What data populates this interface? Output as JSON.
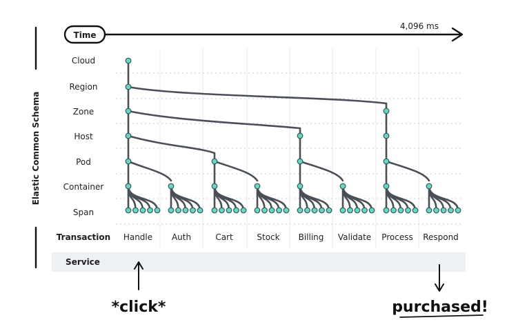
{
  "time_label": "Time",
  "time_value": "4,096 ms",
  "schema_label": "Elastic Common Schema",
  "levels": [
    "Cloud",
    "Region",
    "Zone",
    "Host",
    "Pod",
    "Container",
    "Span"
  ],
  "transaction_header": "Transaction",
  "transactions": [
    "Handle",
    "Auth",
    "Cart",
    "Stock",
    "Billing",
    "Validate",
    "Process",
    "Respond"
  ],
  "service_label": "Service",
  "start_annotation": "*click*",
  "end_annotation": "purchased!",
  "colors": {
    "node": "#6fd3c4",
    "edge": "#4a4f57",
    "service_band": "#eef1f5"
  }
}
